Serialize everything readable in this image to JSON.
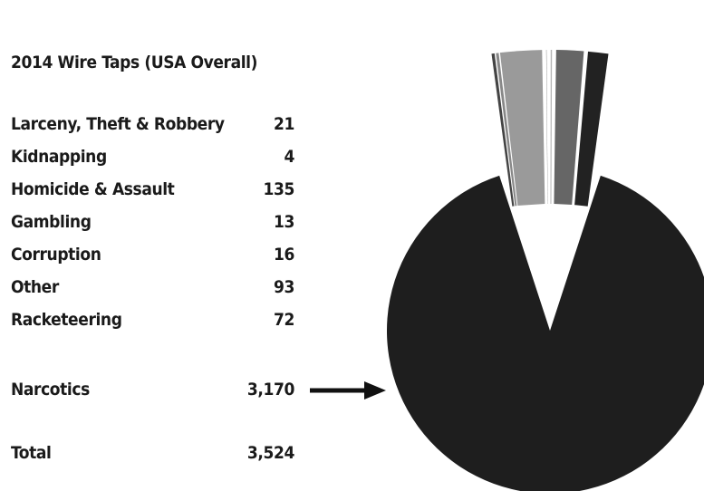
{
  "chart_data": {
    "type": "pie",
    "title": "2014 Wire Taps (USA Overall)",
    "categories": [
      "Larceny, Theft & Robbery",
      "Kidnapping",
      "Homicide & Assault",
      "Gambling",
      "Corruption",
      "Other",
      "Racketeering",
      "Narcotics"
    ],
    "values": [
      21,
      4,
      135,
      13,
      16,
      93,
      72,
      3170
    ],
    "value_labels": [
      "21",
      "4",
      "135",
      "13",
      "16",
      "93",
      "72",
      "3,170"
    ],
    "total_label": "Total",
    "total_value": "3,524",
    "exploded_category": "Narcotics",
    "slice_colors": [
      "#444444",
      "#888888",
      "#9a9a9a",
      "#555555",
      "#b5b5b5",
      "#666666",
      "#222222",
      "#1e1e1e"
    ],
    "legend": "left",
    "pointer": "arrow from Narcotics row to its slice"
  }
}
